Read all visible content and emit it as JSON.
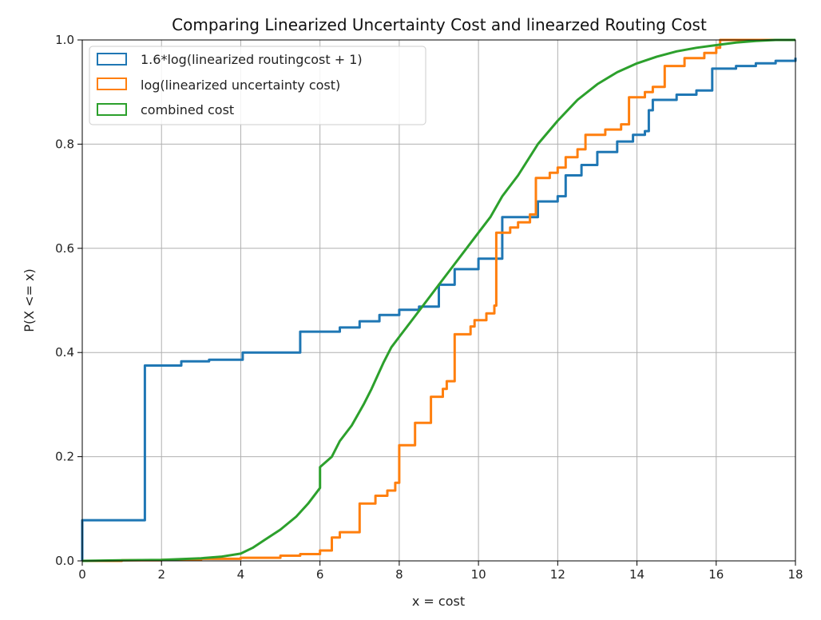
{
  "chart_data": {
    "type": "line",
    "title": "Comparing Linearized Uncertainty Cost and linearzed Routing Cost",
    "xlabel": "x = cost",
    "ylabel": "P(X <= x)",
    "xlim": [
      0,
      18
    ],
    "ylim": [
      0,
      1
    ],
    "xticks": [
      "0",
      "2",
      "4",
      "6",
      "8",
      "10",
      "12",
      "14",
      "16",
      "18"
    ],
    "yticks": [
      "0.0",
      "0.2",
      "0.4",
      "0.6",
      "0.8",
      "1.0"
    ],
    "grid": true,
    "legend_position": "upper-left",
    "series": [
      {
        "name": "1.6*log(linearized routingcost + 1)",
        "color": "#1f77b4",
        "step": true,
        "points": [
          [
            0,
            0
          ],
          [
            0,
            0.078
          ],
          [
            1.58,
            0.078
          ],
          [
            1.58,
            0.375
          ],
          [
            2.5,
            0.375
          ],
          [
            2.5,
            0.383
          ],
          [
            3.2,
            0.386
          ],
          [
            4.05,
            0.388
          ],
          [
            4.05,
            0.4
          ],
          [
            5.5,
            0.405
          ],
          [
            5.5,
            0.44
          ],
          [
            6.5,
            0.448
          ],
          [
            7.0,
            0.46
          ],
          [
            7.5,
            0.472
          ],
          [
            8.0,
            0.482
          ],
          [
            8.5,
            0.488
          ],
          [
            9.0,
            0.498
          ],
          [
            9.0,
            0.53
          ],
          [
            9.4,
            0.53
          ],
          [
            9.4,
            0.56
          ],
          [
            10.0,
            0.58
          ],
          [
            10.6,
            0.595
          ],
          [
            10.6,
            0.66
          ],
          [
            11.5,
            0.68
          ],
          [
            11.5,
            0.69
          ],
          [
            12.0,
            0.7
          ],
          [
            12.2,
            0.712
          ],
          [
            12.2,
            0.74
          ],
          [
            12.6,
            0.76
          ],
          [
            13.0,
            0.785
          ],
          [
            13.5,
            0.805
          ],
          [
            13.9,
            0.818
          ],
          [
            14.2,
            0.825
          ],
          [
            14.3,
            0.842
          ],
          [
            14.3,
            0.865
          ],
          [
            14.4,
            0.87
          ],
          [
            14.4,
            0.885
          ],
          [
            15.0,
            0.895
          ],
          [
            15.5,
            0.903
          ],
          [
            15.9,
            0.91
          ],
          [
            15.9,
            0.945
          ],
          [
            16.5,
            0.95
          ],
          [
            17.0,
            0.955
          ],
          [
            17.5,
            0.96
          ],
          [
            18.0,
            0.966
          ]
        ]
      },
      {
        "name": "log(linearized uncertainty cost)",
        "color": "#ff7f0e",
        "step": true,
        "points": [
          [
            0,
            0
          ],
          [
            1.0,
            0.001
          ],
          [
            2.0,
            0.002
          ],
          [
            3.0,
            0.004
          ],
          [
            4.0,
            0.006
          ],
          [
            5.0,
            0.01
          ],
          [
            5.5,
            0.013
          ],
          [
            6.0,
            0.02
          ],
          [
            6.3,
            0.03
          ],
          [
            6.3,
            0.045
          ],
          [
            6.5,
            0.055
          ],
          [
            7.0,
            0.07
          ],
          [
            7.0,
            0.11
          ],
          [
            7.4,
            0.125
          ],
          [
            7.7,
            0.135
          ],
          [
            7.9,
            0.15
          ],
          [
            8.0,
            0.175
          ],
          [
            8.0,
            0.222
          ],
          [
            8.4,
            0.24
          ],
          [
            8.4,
            0.265
          ],
          [
            8.8,
            0.285
          ],
          [
            8.8,
            0.315
          ],
          [
            9.1,
            0.33
          ],
          [
            9.2,
            0.345
          ],
          [
            9.4,
            0.36
          ],
          [
            9.4,
            0.435
          ],
          [
            9.8,
            0.45
          ],
          [
            9.9,
            0.462
          ],
          [
            10.2,
            0.475
          ],
          [
            10.4,
            0.49
          ],
          [
            10.45,
            0.56
          ],
          [
            10.45,
            0.63
          ],
          [
            10.8,
            0.64
          ],
          [
            11.0,
            0.65
          ],
          [
            11.3,
            0.665
          ],
          [
            11.45,
            0.67
          ],
          [
            11.45,
            0.735
          ],
          [
            11.8,
            0.745
          ],
          [
            12.0,
            0.755
          ],
          [
            12.2,
            0.775
          ],
          [
            12.5,
            0.79
          ],
          [
            12.7,
            0.8
          ],
          [
            12.7,
            0.818
          ],
          [
            13.2,
            0.828
          ],
          [
            13.6,
            0.838
          ],
          [
            13.8,
            0.85
          ],
          [
            13.8,
            0.89
          ],
          [
            14.2,
            0.9
          ],
          [
            14.4,
            0.91
          ],
          [
            14.7,
            0.925
          ],
          [
            14.7,
            0.95
          ],
          [
            15.2,
            0.965
          ],
          [
            15.7,
            0.975
          ],
          [
            16.0,
            0.985
          ],
          [
            16.1,
            1.0
          ],
          [
            18.0,
            1.0
          ]
        ]
      },
      {
        "name": "combined cost",
        "color": "#2ca02c",
        "step": false,
        "points": [
          [
            0,
            0
          ],
          [
            1.0,
            0.001
          ],
          [
            2.0,
            0.002
          ],
          [
            3.0,
            0.005
          ],
          [
            3.5,
            0.008
          ],
          [
            4.0,
            0.014
          ],
          [
            4.3,
            0.025
          ],
          [
            4.6,
            0.04
          ],
          [
            5.0,
            0.06
          ],
          [
            5.4,
            0.085
          ],
          [
            5.7,
            0.11
          ],
          [
            6.0,
            0.14
          ],
          [
            6.0,
            0.18
          ],
          [
            6.3,
            0.2
          ],
          [
            6.5,
            0.23
          ],
          [
            6.8,
            0.26
          ],
          [
            7.1,
            0.3
          ],
          [
            7.3,
            0.33
          ],
          [
            7.6,
            0.38
          ],
          [
            7.8,
            0.41
          ],
          [
            8.0,
            0.43
          ],
          [
            8.3,
            0.46
          ],
          [
            8.6,
            0.49
          ],
          [
            9.0,
            0.53
          ],
          [
            9.4,
            0.57
          ],
          [
            9.7,
            0.6
          ],
          [
            10.0,
            0.63
          ],
          [
            10.3,
            0.66
          ],
          [
            10.6,
            0.7
          ],
          [
            11.0,
            0.74
          ],
          [
            11.5,
            0.8
          ],
          [
            12.0,
            0.845
          ],
          [
            12.5,
            0.885
          ],
          [
            13.0,
            0.915
          ],
          [
            13.5,
            0.938
          ],
          [
            14.0,
            0.955
          ],
          [
            14.5,
            0.968
          ],
          [
            15.0,
            0.978
          ],
          [
            15.5,
            0.985
          ],
          [
            16.0,
            0.99
          ],
          [
            16.5,
            0.995
          ],
          [
            17.0,
            0.998
          ],
          [
            17.5,
            1.0
          ],
          [
            18.0,
            1.0
          ]
        ]
      }
    ]
  }
}
